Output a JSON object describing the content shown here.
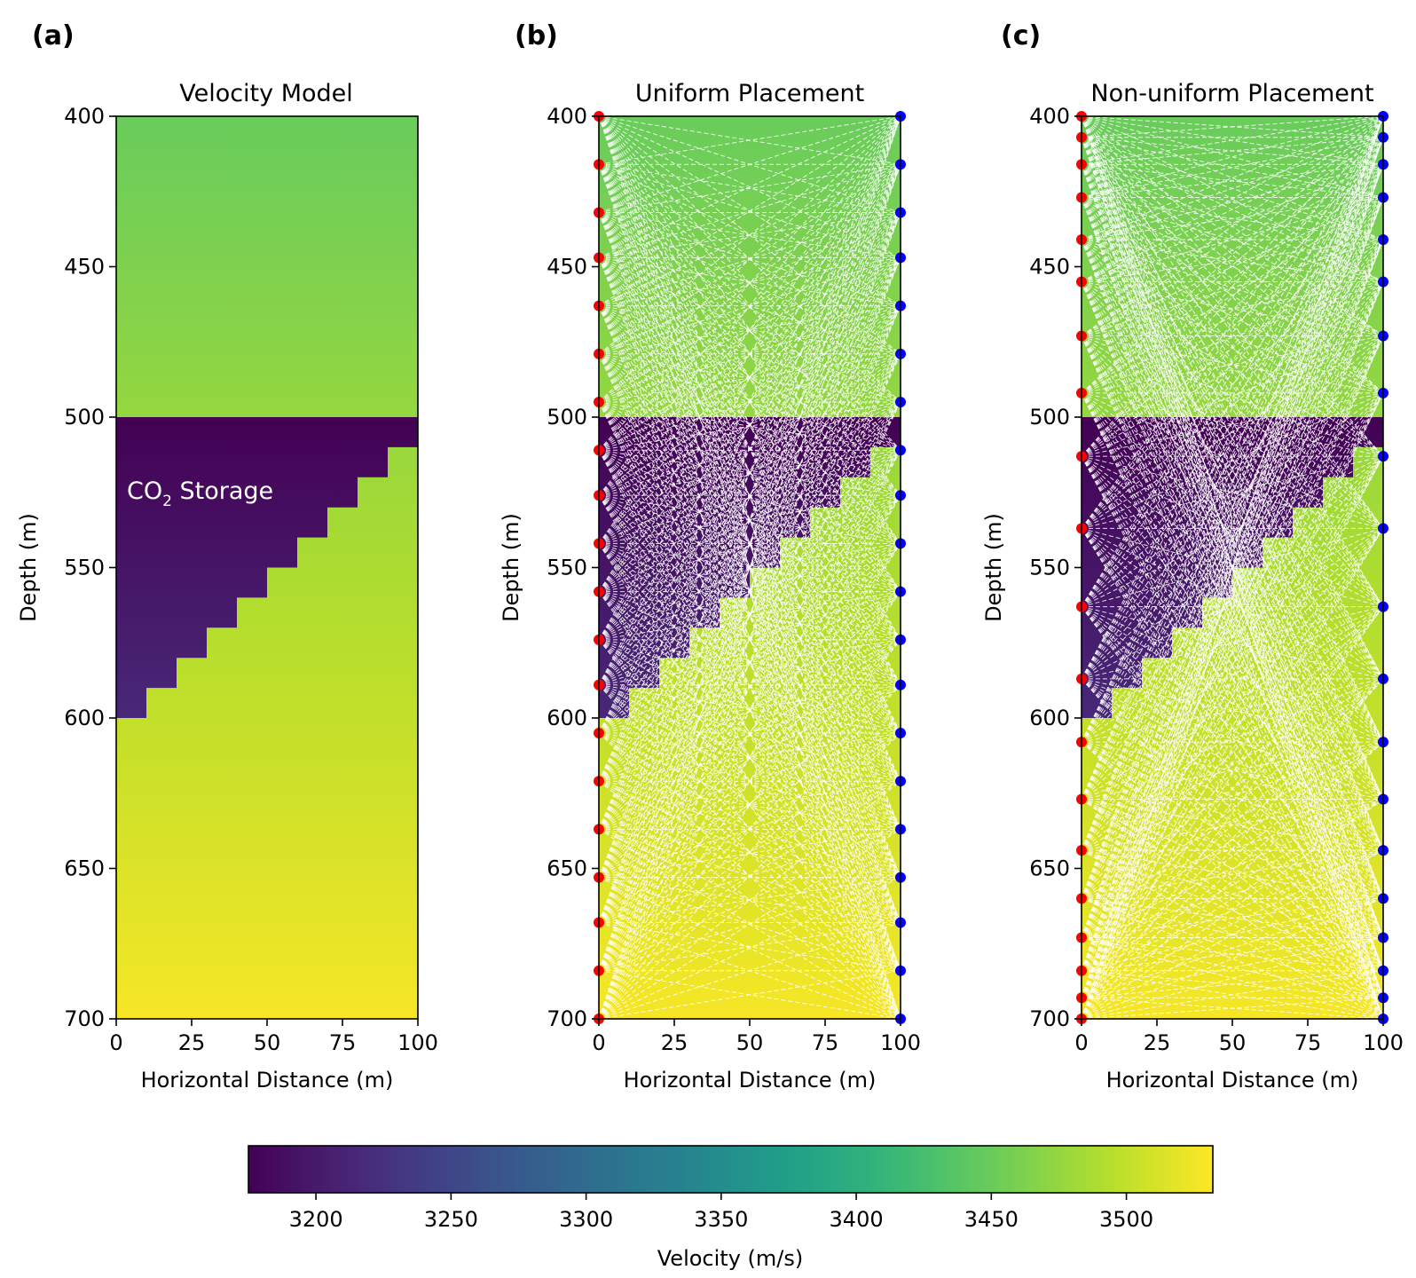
{
  "panels": [
    {
      "letter": "(a)",
      "chart_data": {
        "type": "heatmap",
        "title": "Velocity Model",
        "xlabel": "Horizontal Distance (m)",
        "ylabel": "Depth (m)",
        "xlim": [
          0,
          100
        ],
        "ylim": [
          700,
          400
        ],
        "xticks": [
          "0",
          "25",
          "50",
          "75",
          "100"
        ],
        "yticks": [
          "400",
          "450",
          "500",
          "550",
          "600",
          "650",
          "700"
        ],
        "background_velocity": {
          "depth": [
            400,
            500,
            600,
            700
          ],
          "velocity": [
            3450,
            3475,
            3500,
            3528
          ]
        },
        "co2_layer": {
          "top_depth": 500,
          "label_prefix": "CO",
          "label_sub": "2",
          "label_suffix": " Storage",
          "velocity_at_depth": {
            "depth": [
              500,
              600
            ],
            "velocity": [
              3175,
              3215
            ]
          },
          "step_bottom": [
            {
              "x0": 0,
              "x1": 10,
              "depth": 600
            },
            {
              "x0": 10,
              "x1": 20,
              "depth": 590
            },
            {
              "x0": 20,
              "x1": 30,
              "depth": 580
            },
            {
              "x0": 30,
              "x1": 40,
              "depth": 570
            },
            {
              "x0": 40,
              "x1": 50,
              "depth": 560
            },
            {
              "x0": 50,
              "x1": 60,
              "depth": 550
            },
            {
              "x0": 60,
              "x1": 70,
              "depth": 540
            },
            {
              "x0": 70,
              "x1": 80,
              "depth": 530
            },
            {
              "x0": 80,
              "x1": 90,
              "depth": 520
            },
            {
              "x0": 90,
              "x1": 100,
              "depth": 510
            }
          ]
        }
      }
    },
    {
      "letter": "(b)",
      "chart_data": {
        "type": "heatmap",
        "title": "Uniform Placement",
        "xlabel": "Horizontal Distance (m)",
        "ylabel": "Depth (m)",
        "xlim": [
          0,
          100
        ],
        "ylim": [
          700,
          400
        ],
        "xticks": [
          "0",
          "25",
          "50",
          "75",
          "100"
        ],
        "yticks": [
          "400",
          "450",
          "500",
          "550",
          "600",
          "650",
          "700"
        ],
        "sources": {
          "x": 0,
          "color": "#ff0000",
          "depths": [
            400,
            416,
            432,
            447,
            463,
            479,
            495,
            511,
            526,
            542,
            558,
            574,
            589,
            605,
            621,
            637,
            653,
            668,
            684,
            700
          ]
        },
        "receivers": {
          "x": 100,
          "color": "#0000ff",
          "depths": [
            400,
            416,
            432,
            447,
            463,
            479,
            495,
            511,
            526,
            542,
            558,
            574,
            589,
            605,
            621,
            637,
            653,
            668,
            684,
            700
          ]
        },
        "rays": "all source-receiver pairs, white dashed"
      }
    },
    {
      "letter": "(c)",
      "chart_data": {
        "type": "heatmap",
        "title": "Non-uniform Placement",
        "xlabel": "Horizontal Distance (m)",
        "ylabel": "Depth (m)",
        "xlim": [
          0,
          100
        ],
        "ylim": [
          700,
          400
        ],
        "xticks": [
          "0",
          "25",
          "50",
          "75",
          "100"
        ],
        "yticks": [
          "400",
          "450",
          "500",
          "550",
          "600",
          "650",
          "700"
        ],
        "sources": {
          "x": 0,
          "color": "#ff0000",
          "depths": [
            400,
            407,
            416,
            427,
            441,
            455,
            473,
            492,
            513,
            537,
            563,
            587,
            608,
            627,
            644,
            660,
            673,
            684,
            693,
            700
          ]
        },
        "receivers": {
          "x": 100,
          "color": "#0000ff",
          "depths": [
            400,
            407,
            416,
            427,
            441,
            455,
            473,
            492,
            513,
            537,
            563,
            587,
            608,
            627,
            644,
            660,
            673,
            684,
            693,
            700
          ]
        },
        "rays": "all source-receiver pairs, white dashed"
      }
    }
  ],
  "colorbar": {
    "label": "Velocity (m/s)",
    "range": [
      3175,
      3532
    ],
    "ticks": [
      3200,
      3250,
      3300,
      3350,
      3400,
      3450,
      3500
    ],
    "colormap": "viridis"
  }
}
